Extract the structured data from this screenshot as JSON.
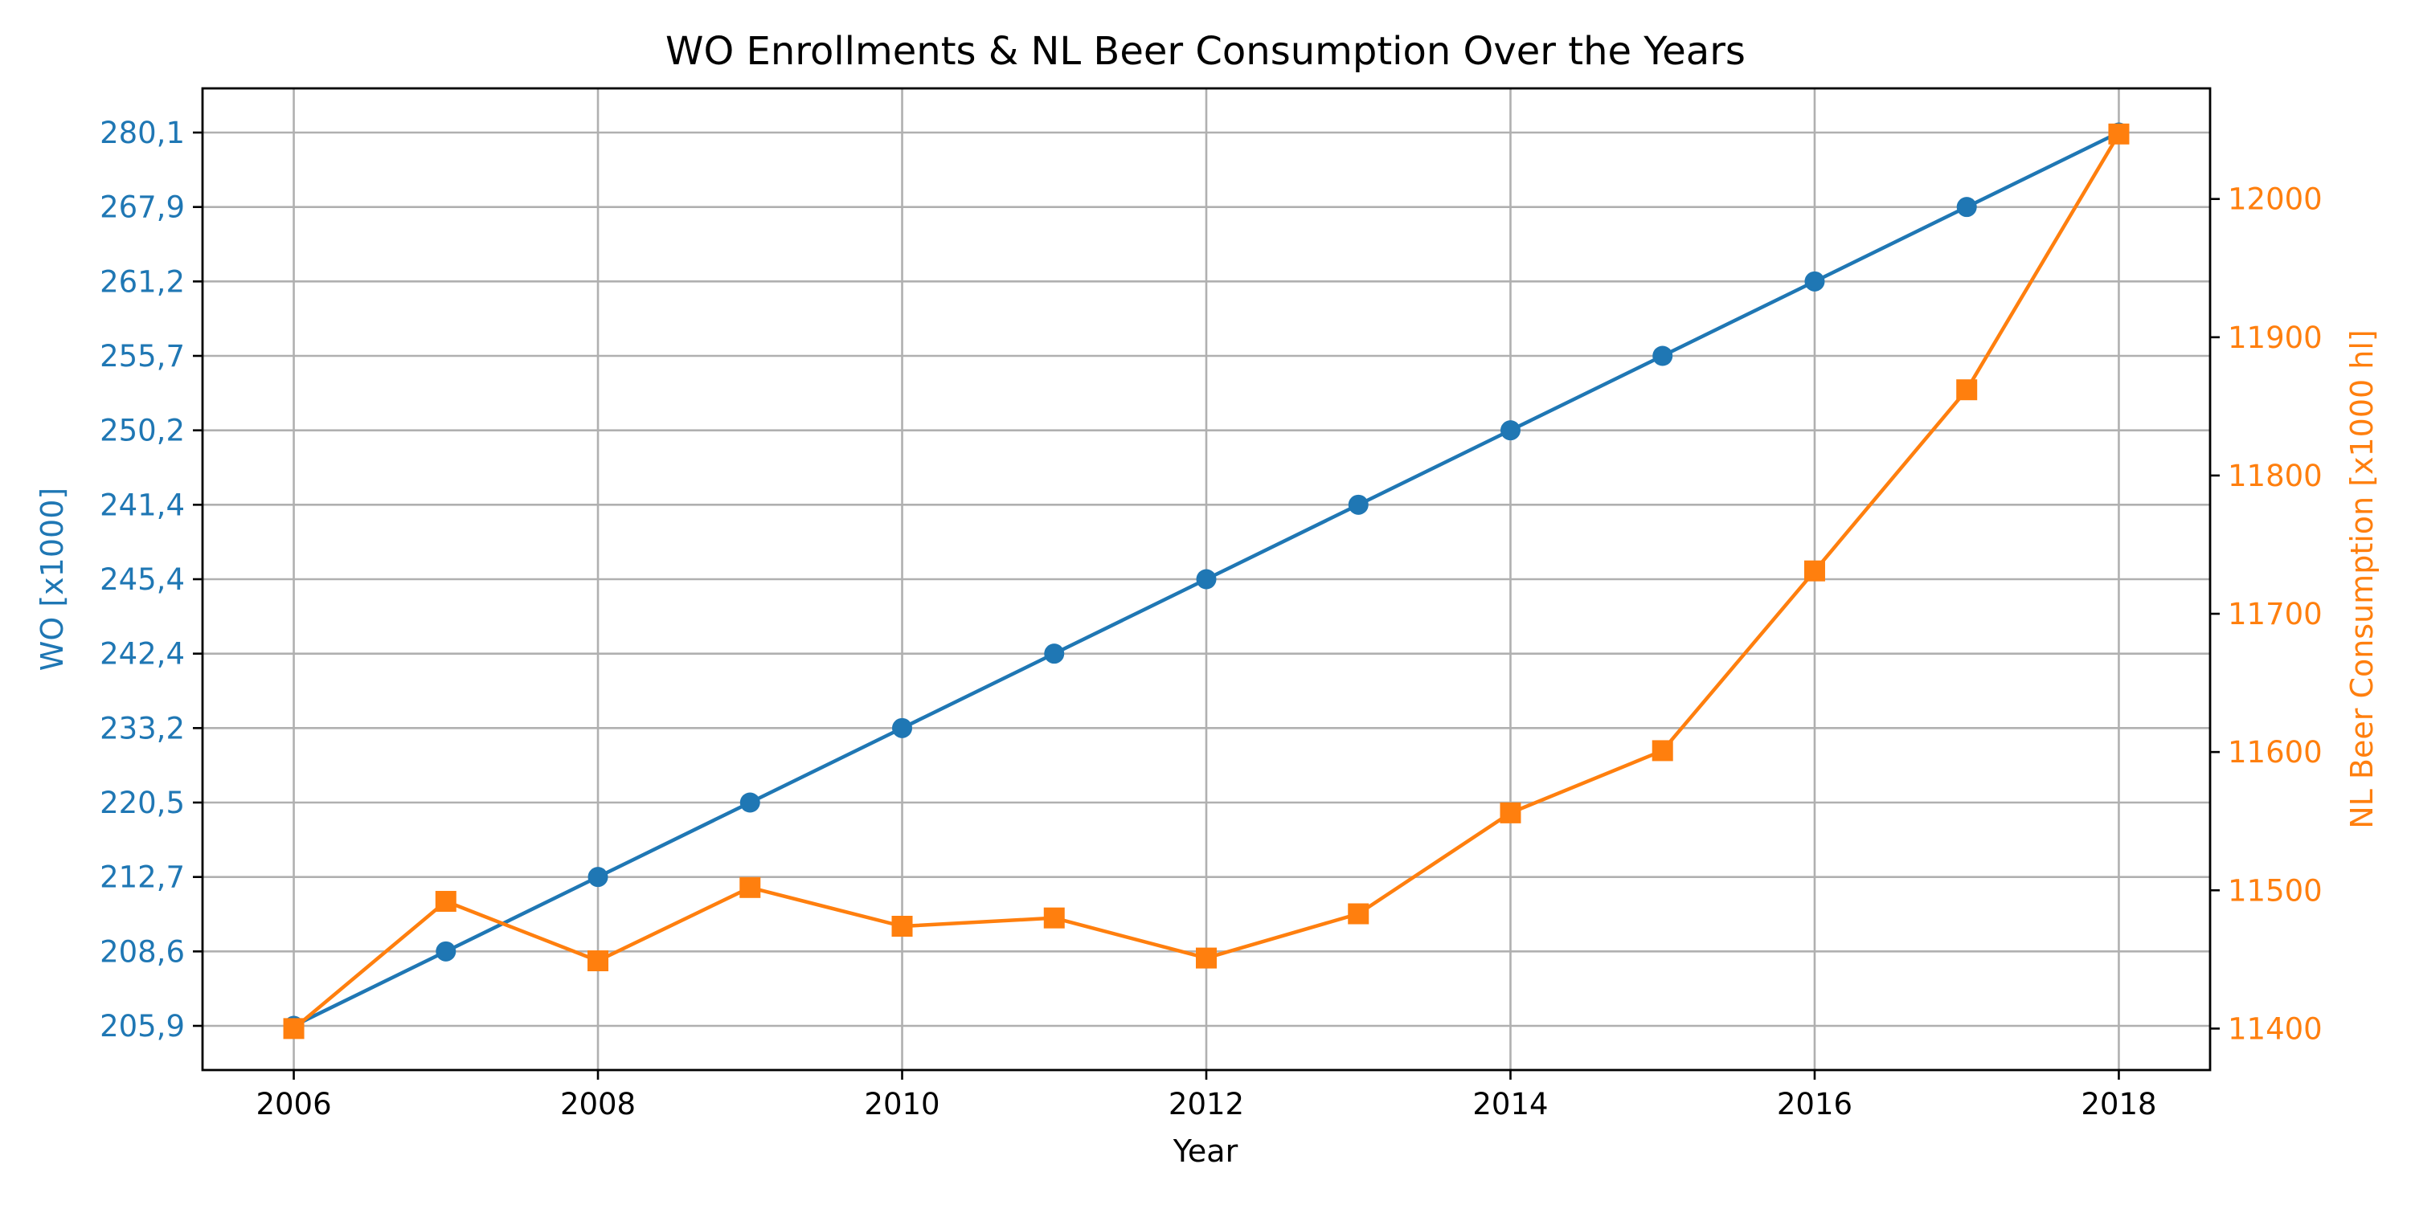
{
  "chart_data": {
    "type": "line",
    "title": "WO Enrollments & NL Beer Consumption Over the Years",
    "xlabel": "Year",
    "ylabel_left": "WO [x1000]",
    "ylabel_right": "NL Beer Consumption [x1000 hl]",
    "x": [
      2006,
      2007,
      2008,
      2009,
      2010,
      2011,
      2012,
      2013,
      2014,
      2015,
      2016,
      2017,
      2018
    ],
    "x_ticks": [
      "2006",
      "2008",
      "2010",
      "2012",
      "2014",
      "2016",
      "2018"
    ],
    "left_axis_categories": [
      "205,9",
      "208,6",
      "212,7",
      "220,5",
      "233,2",
      "242,4",
      "245,4",
      "241,4",
      "250,2",
      "255,7",
      "261,2",
      "267,9",
      "280,1"
    ],
    "right_ticks": [
      "11400",
      "11500",
      "11600",
      "11700",
      "11800",
      "11900",
      "12000"
    ],
    "right_ylim": [
      11370,
      12080
    ],
    "grid": true,
    "series": [
      {
        "name": "WO",
        "axis": "left",
        "values": [
          "205,9",
          "208,6",
          "212,7",
          "220,5",
          "233,2",
          "242,4",
          "245,4",
          "241,4",
          "250,2",
          "255,7",
          "261,2",
          "267,9",
          "280,1"
        ],
        "color": "#1f77b4",
        "marker": "circle"
      },
      {
        "name": "NL Beer Consumption",
        "axis": "right",
        "values": [
          11400,
          11492,
          11449,
          11502,
          11474,
          11480,
          11451,
          11483,
          11556,
          11601,
          11731,
          11862,
          12047
        ],
        "color": "#ff7f0e",
        "marker": "square"
      }
    ],
    "colors": {
      "left_axis": "#1f77b4",
      "right_axis": "#ff7f0e",
      "grid": "#b0b0b0",
      "frame": "#000000"
    }
  }
}
